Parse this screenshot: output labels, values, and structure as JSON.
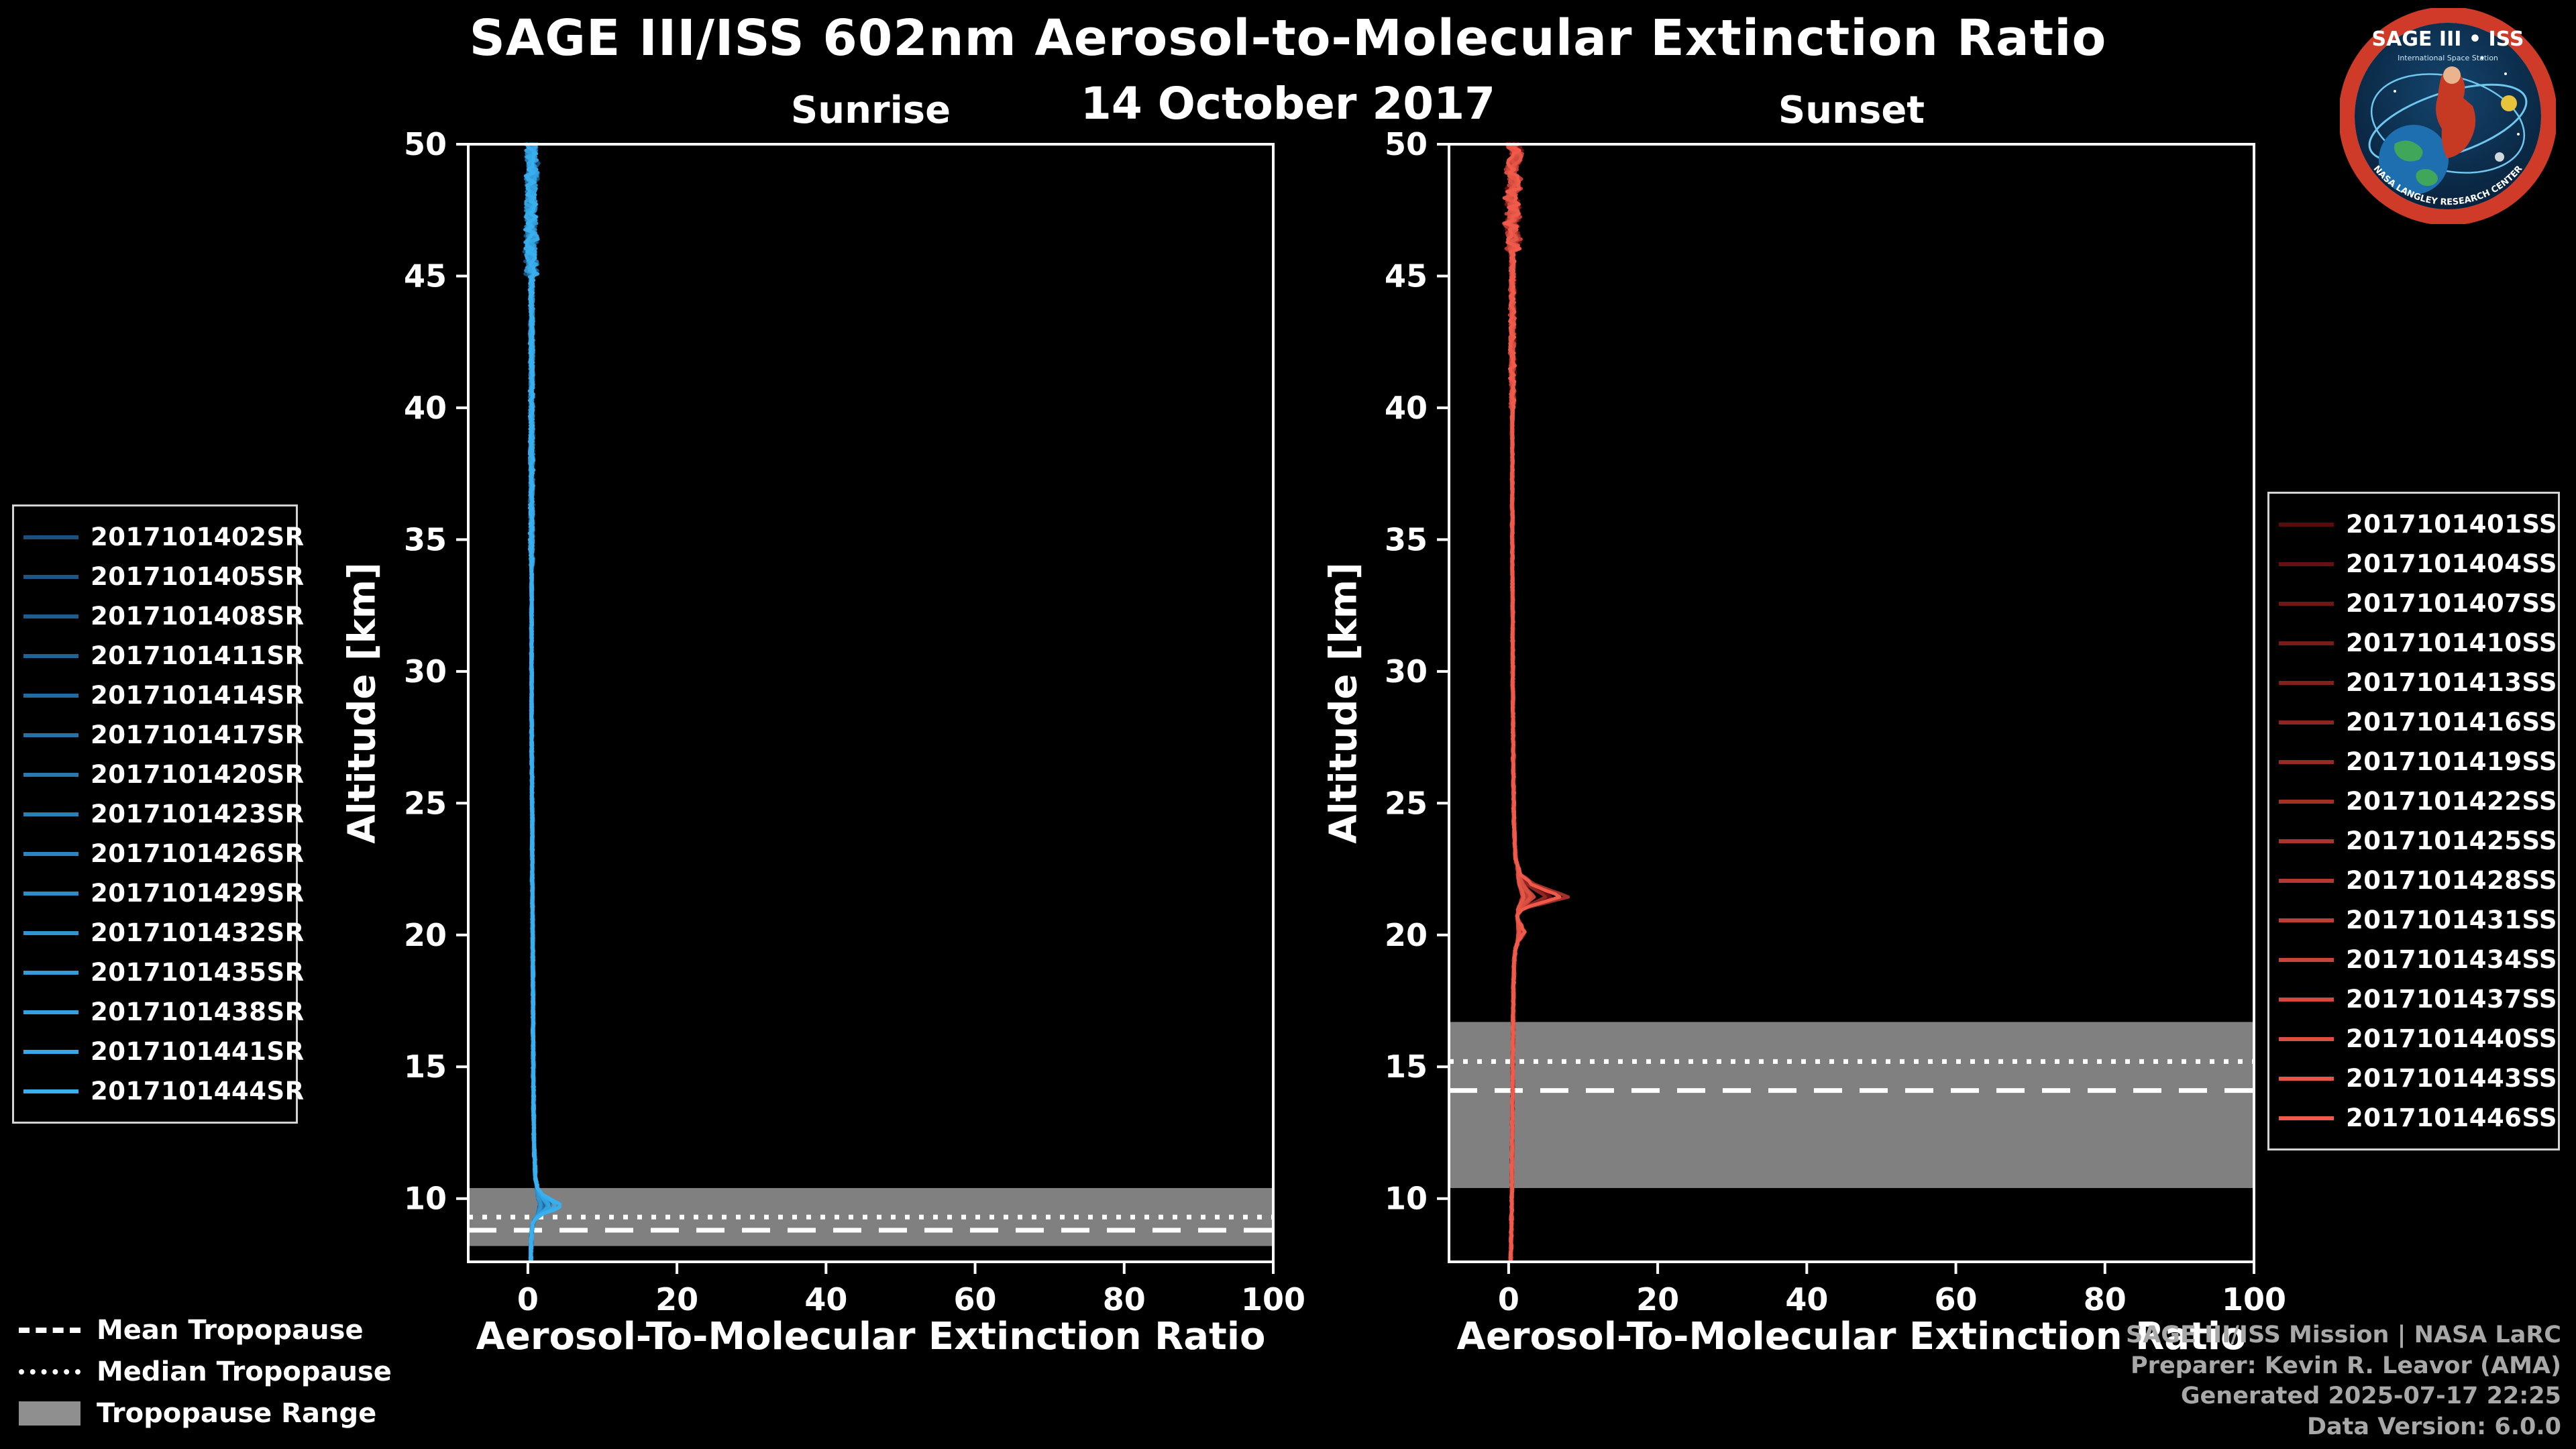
{
  "header": {
    "title": "SAGE III/ISS 602nm Aerosol-to-Molecular Extinction Ratio",
    "date": "14 October 2017"
  },
  "tropopause_legend": {
    "mean_label": "Mean Tropopause",
    "median_label": "Median Tropopause",
    "range_label": "Tropopause Range"
  },
  "attribution": {
    "line1": "SAGE III/ISS Mission | NASA LaRC",
    "line2": "Preparer: Kevin R. Leavor (AMA)",
    "line3": "Generated 2025-07-17 22:25",
    "line4": "Data Version: 6.0.0"
  },
  "logo": {
    "title": "SAGE III • ISS",
    "subtitle": "International Space Station",
    "ring_text": "NASA LANGLEY RESEARCH CENTER"
  },
  "chart_data": [
    {
      "type": "line",
      "panel_title": "Sunrise",
      "xlabel": "Aerosol-To-Molecular Extinction Ratio",
      "ylabel": "Altitude [km]",
      "xlim": [
        -8,
        100
      ],
      "ylim": [
        7.6,
        50
      ],
      "xticks": [
        0,
        20,
        40,
        60,
        80,
        100
      ],
      "yticks": [
        10,
        15,
        20,
        25,
        30,
        35,
        40,
        45,
        50
      ],
      "legend_position": "left",
      "color_start": "#1a4f7e",
      "color_end": "#38b0f0",
      "series_labels": [
        "2017101402SR",
        "2017101405SR",
        "2017101408SR",
        "2017101411SR",
        "2017101414SR",
        "2017101417SR",
        "2017101420SR",
        "2017101423SR",
        "2017101426SR",
        "2017101429SR",
        "2017101432SR",
        "2017101435SR",
        "2017101438SR",
        "2017101441SR",
        "2017101444SR"
      ],
      "tropopause": {
        "mean_km": 8.8,
        "median_km": 9.3,
        "range_km": [
          8.2,
          10.4
        ]
      },
      "mean_profile": {
        "altitude_km": [
          50,
          49,
          48,
          47,
          46,
          45,
          44,
          42,
          40,
          38,
          36,
          34,
          32,
          30,
          28,
          26,
          24,
          22,
          20,
          18,
          16,
          14,
          12.5,
          11.5,
          10.8,
          10.4,
          10.1,
          9.9,
          9.75,
          9.6,
          9.4,
          9.2,
          9.0,
          8.7,
          8.4,
          8.0,
          7.7
        ],
        "ratio": [
          0.4,
          0.6,
          0.3,
          0.5,
          0.4,
          0.5,
          0.5,
          0.5,
          0.5,
          0.5,
          0.5,
          0.5,
          0.5,
          0.5,
          0.5,
          0.55,
          0.6,
          0.6,
          0.65,
          0.7,
          0.7,
          0.75,
          0.8,
          0.9,
          1.0,
          1.3,
          2.2,
          3.6,
          4.6,
          3.8,
          1.8,
          0.9,
          0.6,
          0.5,
          0.45,
          0.4,
          0.4
        ]
      },
      "noise": {
        "bands": [
          {
            "above_km": 45,
            "amp": 0.7
          },
          {
            "above_km": 34,
            "amp": 0.22
          },
          {
            "above_km": -99,
            "amp": 0.1
          }
        ]
      }
    },
    {
      "type": "line",
      "panel_title": "Sunset",
      "xlabel": "Aerosol-To-Molecular Extinction Ratio",
      "ylabel": "Altitude [km]",
      "xlim": [
        -8,
        100
      ],
      "ylim": [
        7.6,
        50
      ],
      "xticks": [
        0,
        20,
        40,
        60,
        80,
        100
      ],
      "yticks": [
        10,
        15,
        20,
        25,
        30,
        35,
        40,
        45,
        50
      ],
      "legend_position": "right",
      "color_start": "#5c0b0b",
      "color_end": "#ef5a4a",
      "series_labels": [
        "2017101401SS",
        "2017101404SS",
        "2017101407SS",
        "2017101410SS",
        "2017101413SS",
        "2017101416SS",
        "2017101419SS",
        "2017101422SS",
        "2017101425SS",
        "2017101428SS",
        "2017101431SS",
        "2017101434SS",
        "2017101437SS",
        "2017101440SS",
        "2017101443SS",
        "2017101446SS"
      ],
      "tropopause": {
        "mean_km": 14.1,
        "median_km": 15.2,
        "range_km": [
          10.4,
          16.7
        ]
      },
      "mean_profile": {
        "altitude_km": [
          50,
          49.5,
          49,
          48.5,
          48,
          47.5,
          47,
          46.5,
          46,
          45,
          44,
          42,
          40,
          38,
          36,
          34,
          32,
          30,
          28,
          26,
          24.5,
          23.5,
          22.8,
          22.3,
          21.9,
          21.6,
          21.45,
          21.2,
          21.0,
          20.7,
          20.4,
          20.1,
          19.8,
          19.5,
          19.0,
          18.0,
          16.5,
          15.0,
          13.0,
          11.0,
          9.5,
          8.5,
          7.7
        ],
        "ratio": [
          0.5,
          1.2,
          0.1,
          0.9,
          0.2,
          0.8,
          0.3,
          0.7,
          0.5,
          0.5,
          0.5,
          0.5,
          0.5,
          0.5,
          0.5,
          0.5,
          0.55,
          0.55,
          0.6,
          0.65,
          0.7,
          0.8,
          1.0,
          1.6,
          3.2,
          5.8,
          7.0,
          4.2,
          1.8,
          1.1,
          1.6,
          2.1,
          1.4,
          0.9,
          0.75,
          0.65,
          0.6,
          0.55,
          0.5,
          0.45,
          0.4,
          0.35,
          0.3
        ]
      },
      "noise": {
        "bands": [
          {
            "above_km": 46,
            "amp": 0.85
          },
          {
            "above_km": 40,
            "amp": 0.3
          },
          {
            "above_km": -99,
            "amp": 0.1
          }
        ]
      }
    }
  ]
}
